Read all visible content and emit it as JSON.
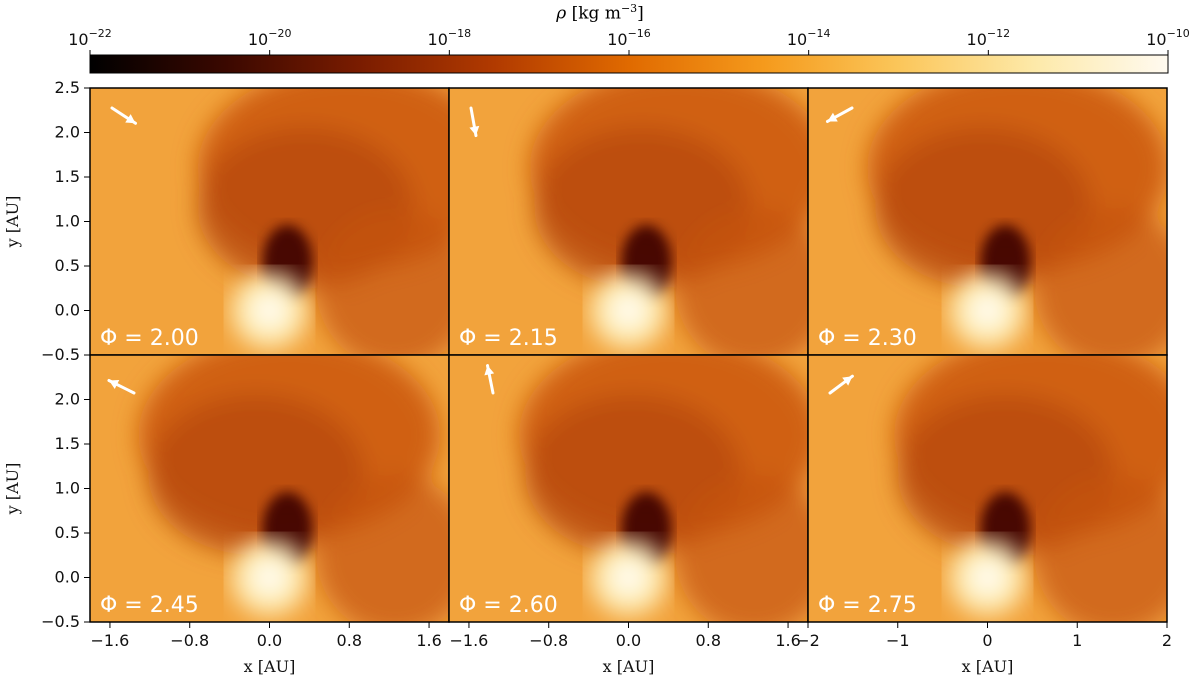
{
  "colorbar": {
    "label_symbol": "ρ",
    "label_unit": "[kg m",
    "label_unit_exp": "−3",
    "label_unit_end": "]",
    "tick_base": "10",
    "tick_exponents": [
      "−22",
      "−20",
      "−18",
      "−16",
      "−14",
      "−12",
      "−10"
    ],
    "range_log10": [
      -22,
      -10
    ],
    "colors": [
      "#000000",
      "#3a0800",
      "#7a1c00",
      "#b13a00",
      "#e06a00",
      "#f59a1c",
      "#fbc65a",
      "#fde9a8",
      "#fffaf0"
    ]
  },
  "chart_data": {
    "type": "heatmap",
    "quantity": "ρ [kg m^-3]",
    "xlabel": "x [AU]",
    "ylabel": "y [AU]",
    "ylim": [
      -0.5,
      2.5
    ],
    "y_ticks": [
      "−0.5",
      "0.0",
      "0.5",
      "1.0",
      "1.5",
      "2.0",
      "2.5"
    ],
    "x_ticks": {
      "col1": [
        "−1.6",
        "−0.8",
        "0.0",
        "0.8",
        "1.6"
      ],
      "col2": [
        "−1.6",
        "−0.8",
        "0.0",
        "0.8",
        "1.6"
      ],
      "col3": [
        "−2",
        "−1",
        "0",
        "1",
        "2"
      ]
    },
    "panels": [
      {
        "phi": "Φ = 2.00",
        "arrow": "down-right",
        "xlim": [
          -1.8,
          1.8
        ]
      },
      {
        "phi": "Φ = 2.15",
        "arrow": "down",
        "xlim": [
          -1.8,
          1.8
        ]
      },
      {
        "phi": "Φ = 2.30",
        "arrow": "down-left",
        "xlim": [
          -2,
          2
        ]
      },
      {
        "phi": "Φ = 2.45",
        "arrow": "up-left",
        "xlim": [
          -1.8,
          1.8
        ]
      },
      {
        "phi": "Φ = 2.60",
        "arrow": "up",
        "xlim": [
          -1.8,
          1.8
        ]
      },
      {
        "phi": "Φ = 2.75",
        "arrow": "up-right",
        "xlim": [
          -2,
          2
        ]
      }
    ]
  }
}
